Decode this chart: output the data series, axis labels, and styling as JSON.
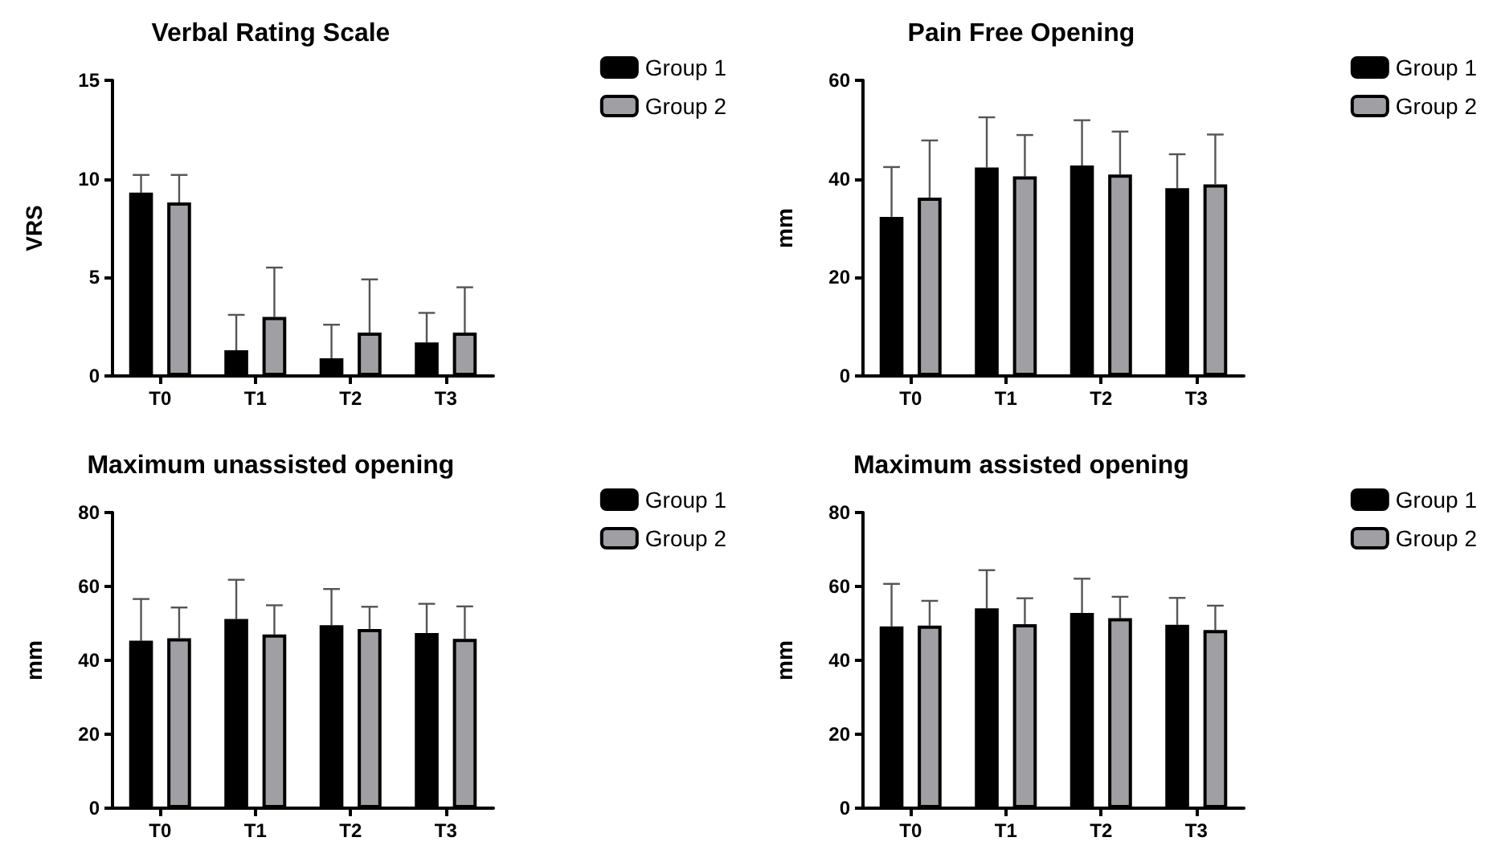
{
  "chart_data": [
    {
      "type": "bar",
      "title": "Verbal Rating Scale",
      "ylabel": "VRS",
      "categories": [
        "T0",
        "T1",
        "T2",
        "T3"
      ],
      "ylim": [
        0,
        15
      ],
      "yticks": [
        0,
        5,
        10,
        15
      ],
      "legend": "top right",
      "series": [
        {
          "name": "Group 1",
          "color": "#000000",
          "values": [
            9.3,
            1.3,
            0.9,
            1.7
          ],
          "errors": [
            [
              9.3,
              10.2
            ],
            [
              1.3,
              3.1
            ],
            [
              0.9,
              2.6
            ],
            [
              1.7,
              3.2
            ]
          ]
        },
        {
          "name": "Group 2",
          "color": "#a0a0a4",
          "values": [
            8.8,
            3.0,
            2.2,
            2.2
          ],
          "errors": [
            [
              8.8,
              10.2
            ],
            [
              3.0,
              5.5
            ],
            [
              2.2,
              4.9
            ],
            [
              2.2,
              4.5
            ]
          ]
        }
      ]
    },
    {
      "type": "bar",
      "title": "Pain Free Opening",
      "ylabel": "mm",
      "categories": [
        "T0",
        "T1",
        "T2",
        "T3"
      ],
      "ylim": [
        0,
        60
      ],
      "yticks": [
        0,
        20,
        40,
        60
      ],
      "legend": "top right",
      "series": [
        {
          "name": "Group 1",
          "color": "#000000",
          "values": [
            32.3,
            42.3,
            42.7,
            38.1
          ],
          "errors": [
            [
              32.3,
              42.4
            ],
            [
              42.3,
              52.5
            ],
            [
              42.7,
              51.9
            ],
            [
              38.1,
              45.0
            ]
          ]
        },
        {
          "name": "Group 2",
          "color": "#a0a0a4",
          "values": [
            36.2,
            40.5,
            40.9,
            38.9
          ],
          "errors": [
            [
              36.2,
              47.8
            ],
            [
              40.5,
              48.9
            ],
            [
              40.9,
              49.6
            ],
            [
              38.9,
              49.0
            ]
          ]
        }
      ]
    },
    {
      "type": "bar",
      "title": "Maximum unassisted opening",
      "ylabel": "mm",
      "categories": [
        "T0",
        "T1",
        "T2",
        "T3"
      ],
      "ylim": [
        0,
        80
      ],
      "yticks": [
        0,
        20,
        40,
        60,
        80
      ],
      "legend": "top right",
      "series": [
        {
          "name": "Group 1",
          "color": "#000000",
          "values": [
            45.3,
            51.2,
            49.5,
            47.4
          ],
          "errors": [
            [
              45.3,
              56.6
            ],
            [
              51.2,
              61.8
            ],
            [
              49.5,
              59.3
            ],
            [
              47.4,
              55.3
            ]
          ]
        },
        {
          "name": "Group 2",
          "color": "#a0a0a4",
          "values": [
            46.0,
            47.0,
            48.5,
            45.8
          ],
          "errors": [
            [
              46.0,
              54.3
            ],
            [
              47.0,
              54.9
            ],
            [
              48.5,
              54.5
            ],
            [
              45.8,
              54.6
            ]
          ]
        }
      ]
    },
    {
      "type": "bar",
      "title": "Maximum assisted opening",
      "ylabel": "mm",
      "categories": [
        "T0",
        "T1",
        "T2",
        "T3"
      ],
      "ylim": [
        0,
        80
      ],
      "yticks": [
        0,
        20,
        40,
        60,
        80
      ],
      "legend": "top right",
      "series": [
        {
          "name": "Group 1",
          "color": "#000000",
          "values": [
            49.2,
            54.1,
            52.8,
            49.6
          ],
          "errors": [
            [
              49.2,
              60.7
            ],
            [
              54.1,
              64.4
            ],
            [
              52.8,
              62.1
            ],
            [
              49.6,
              56.9
            ]
          ]
        },
        {
          "name": "Group 2",
          "color": "#a0a0a4",
          "values": [
            49.4,
            49.8,
            51.4,
            48.2
          ],
          "errors": [
            [
              49.4,
              56.1
            ],
            [
              49.8,
              56.8
            ],
            [
              51.4,
              57.2
            ],
            [
              48.2,
              54.8
            ]
          ]
        }
      ]
    }
  ]
}
